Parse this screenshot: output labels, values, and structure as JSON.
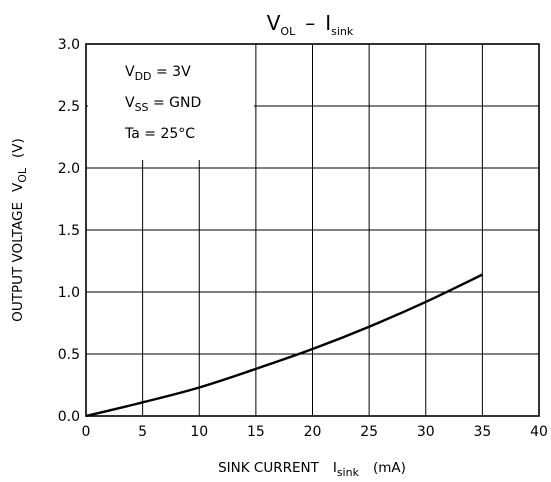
{
  "chart_data": {
    "type": "line",
    "title": {
      "main": "V",
      "main_sub": "OL",
      "dash": "–",
      "var": "I",
      "var_sub": "sink"
    },
    "xlabel": {
      "text": "SINK CURRENT",
      "var": "I",
      "var_sub": "sink",
      "unit": "(mA)"
    },
    "ylabel": {
      "text": "OUTPUT VOLTAGE",
      "var": "V",
      "var_sub": "OL",
      "unit": "(V)"
    },
    "xlim": [
      0,
      40
    ],
    "ylim": [
      0,
      3.0
    ],
    "xticks": [
      0,
      5,
      10,
      15,
      20,
      25,
      30,
      35,
      40
    ],
    "xtick_labels": [
      "0",
      "5",
      "10",
      "15",
      "20",
      "25",
      "30",
      "35",
      "40"
    ],
    "yticks": [
      0,
      0.5,
      1.0,
      1.5,
      2.0,
      2.5,
      3.0
    ],
    "ytick_labels": [
      "0.0",
      "0.5",
      "1.0",
      "1.5",
      "2.0",
      "2.5",
      "3.0"
    ],
    "grid": true,
    "conditions": [
      {
        "pre": "V",
        "sub": "DD",
        "post": " = 3V"
      },
      {
        "pre": "V",
        "sub": "SS",
        "post": " = GND"
      },
      {
        "pre": "Ta = 25°C",
        "sub": "",
        "post": ""
      }
    ],
    "series": [
      {
        "x": [
          0,
          5,
          10,
          15,
          20,
          25,
          30,
          35
        ],
        "y": [
          0,
          0.11,
          0.23,
          0.38,
          0.54,
          0.72,
          0.92,
          1.14
        ]
      }
    ]
  }
}
